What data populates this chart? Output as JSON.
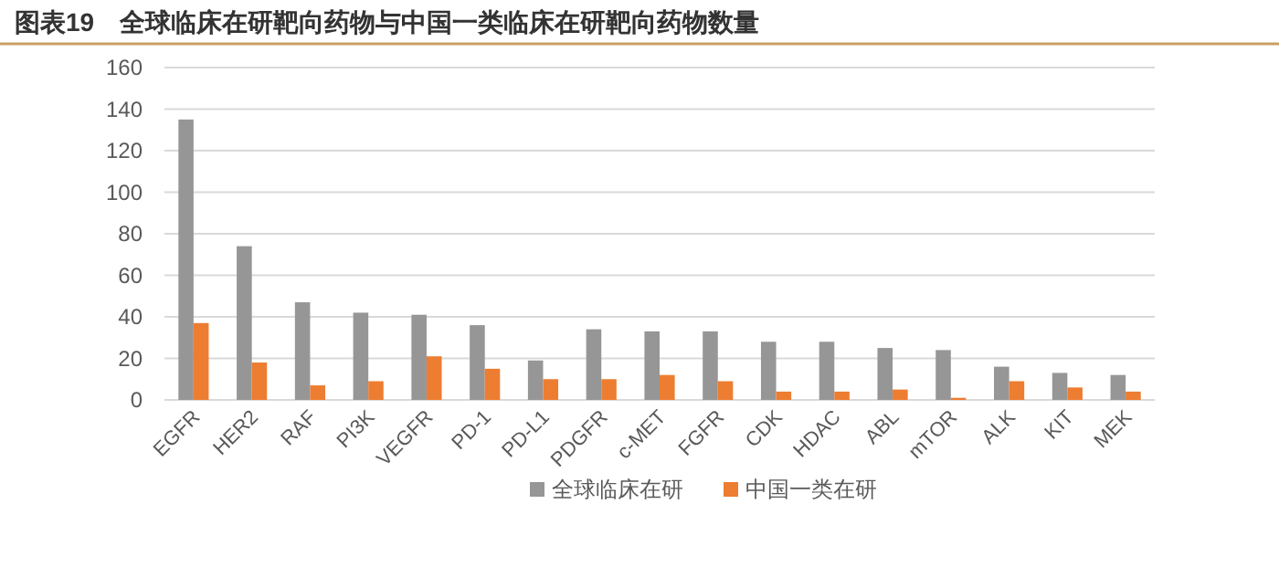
{
  "chart_data": {
    "type": "bar",
    "title": "图表19　全球临床在研靶向药物与中国一类临床在研靶向药物数量",
    "categories": [
      "EGFR",
      "HER2",
      "RAF",
      "PI3K",
      "VEGFR",
      "PD-1",
      "PD-L1",
      "PDGFR",
      "c-MET",
      "FGFR",
      "CDK",
      "HDAC",
      "ABL",
      "mTOR",
      "ALK",
      "KIT",
      "MEK"
    ],
    "series": [
      {
        "name": "全球临床在研",
        "color": "#969696",
        "values": [
          135,
          74,
          47,
          42,
          41,
          36,
          19,
          34,
          33,
          33,
          28,
          28,
          25,
          24,
          16,
          13,
          12
        ]
      },
      {
        "name": "中国一类在研",
        "color": "#ed7d31",
        "values": [
          37,
          18,
          7,
          9,
          21,
          15,
          10,
          10,
          12,
          9,
          4,
          4,
          5,
          1,
          9,
          6,
          4
        ]
      }
    ],
    "ylim": [
      0,
      160
    ],
    "yticks": [
      0,
      20,
      40,
      60,
      80,
      100,
      120,
      140,
      160
    ],
    "grid": "y",
    "legend": "bottom"
  }
}
